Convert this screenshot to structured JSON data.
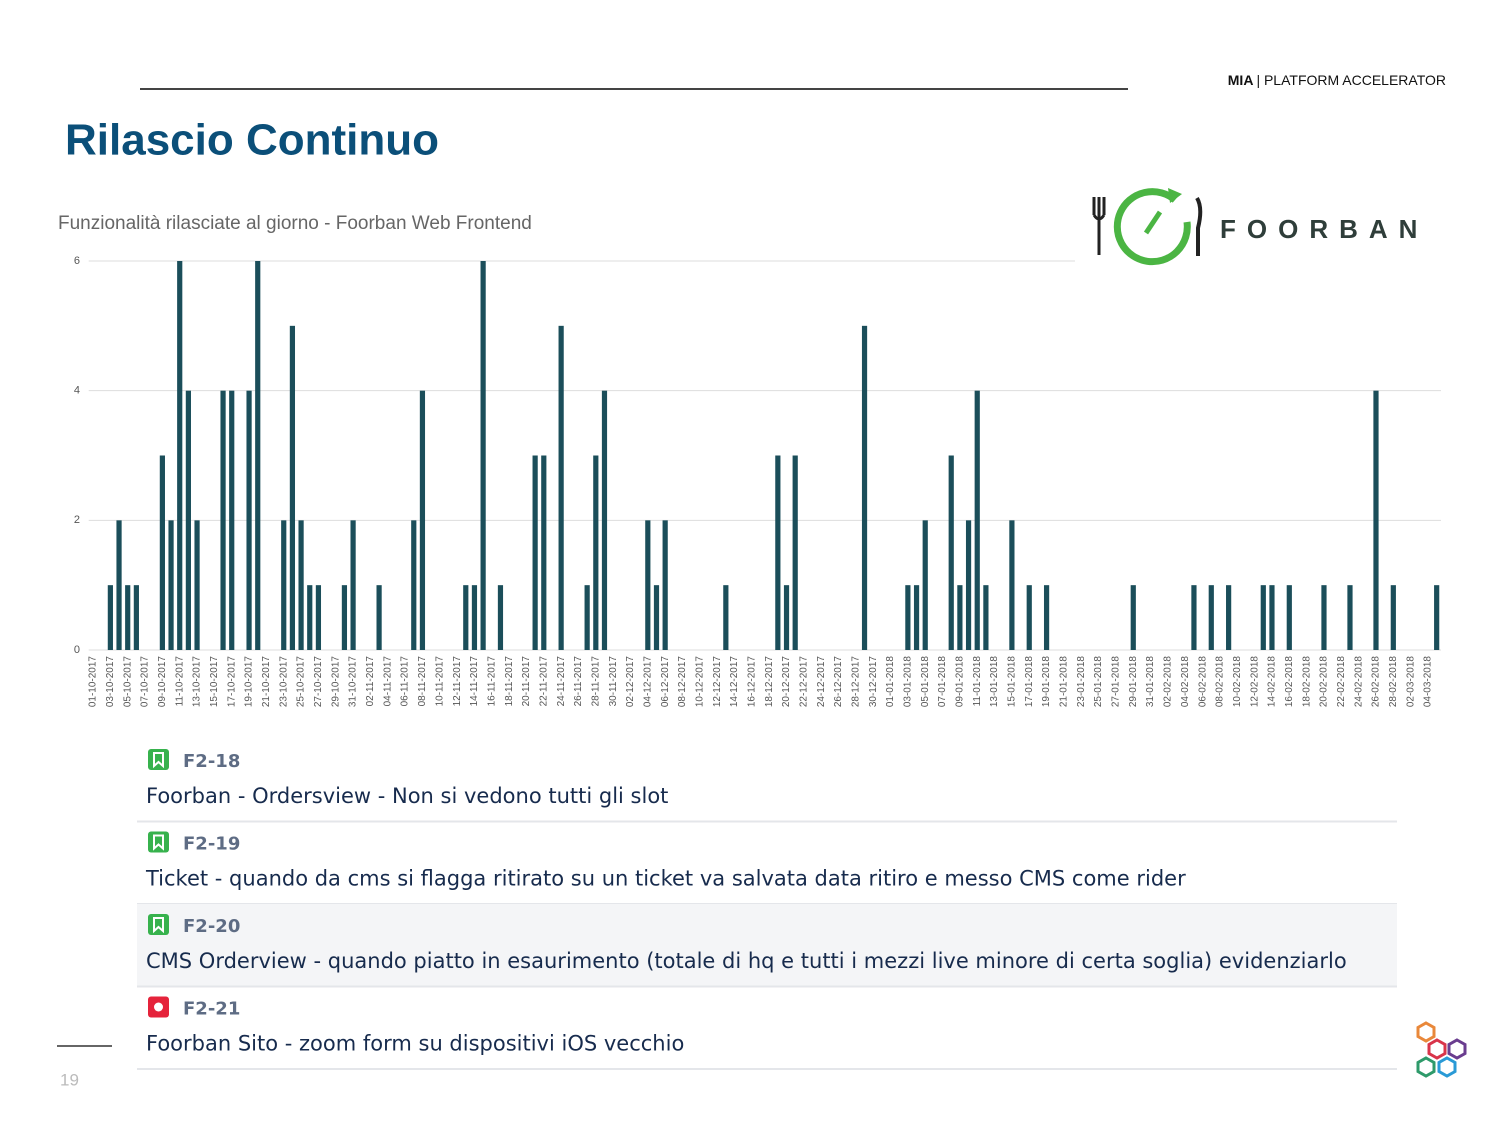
{
  "header": {
    "brand": "MIA",
    "tagline": "| PLATFORM ACCELERATOR"
  },
  "title": "Rilascio Continuo",
  "logo_text": "FOORBAN",
  "page_number": "19",
  "chart_data": {
    "type": "bar",
    "title": "Funzionalità rilasciate al giorno - Foorban Web Frontend",
    "categories": [
      "01-10-2017",
      null,
      "03-10-2017",
      null,
      "05-10-2017",
      null,
      "07-10-2017",
      null,
      "09-10-2017",
      null,
      "11-10-2017",
      null,
      "13-10-2017",
      null,
      "15-10-2017",
      null,
      "17-10-2017",
      null,
      "19-10-2017",
      null,
      "21-10-2017",
      null,
      "23-10-2017",
      null,
      "25-10-2017",
      null,
      "27-10-2017",
      null,
      "29-10-2017",
      null,
      "31-10-2017",
      null,
      "02-11-2017",
      null,
      "04-11-2017",
      null,
      "06-11-2017",
      null,
      "08-11-2017",
      null,
      "10-11-2017",
      null,
      "12-11-2017",
      null,
      "14-11-2017",
      null,
      "16-11-2017",
      null,
      "18-11-2017",
      null,
      "20-11-2017",
      null,
      "22-11-2017",
      null,
      "24-11-2017",
      null,
      "26-11-2017",
      null,
      "28-11-2017",
      null,
      "30-11-2017",
      null,
      "02-12-2017",
      null,
      "04-12-2017",
      null,
      "06-12-2017",
      null,
      "08-12-2017",
      null,
      "10-12-2017",
      null,
      "12-12-2017",
      null,
      "14-12-2017",
      null,
      "16-12-2017",
      null,
      "18-12-2017",
      null,
      "20-12-2017",
      null,
      "22-12-2017",
      null,
      "24-12-2017",
      null,
      "26-12-2017",
      null,
      "28-12-2017",
      null,
      "30-12-2017",
      null,
      "01-01-2018",
      null,
      "03-01-2018",
      null,
      "05-01-2018",
      null,
      "07-01-2018",
      null,
      "09-01-2018",
      null,
      "11-01-2018",
      null,
      "13-01-2018",
      null,
      "15-01-2018",
      null,
      "17-01-2018",
      null,
      "19-01-2018",
      null,
      "21-01-2018",
      null,
      "23-01-2018",
      null,
      "25-01-2018",
      null,
      "27-01-2018",
      null,
      "29-01-2018",
      null,
      "31-01-2018",
      null,
      "02-02-2018",
      null,
      "04-02-2018",
      null,
      "06-02-2018",
      null,
      "08-02-2018",
      null,
      "10-02-2018",
      null,
      "12-02-2018",
      null,
      "14-02-2018",
      null,
      "16-02-2018",
      null,
      "18-02-2018",
      null,
      "20-02-2018",
      null,
      "22-02-2018",
      null,
      "24-02-2018",
      null,
      "26-02-2018",
      null,
      "28-02-2018",
      null,
      "02-03-2018",
      null,
      "04-03-2018",
      null
    ],
    "values": [
      0,
      0,
      1,
      2,
      1,
      1,
      0,
      0,
      3,
      2,
      6,
      4,
      2,
      0,
      0,
      4,
      4,
      0,
      4,
      6,
      0,
      0,
      2,
      5,
      2,
      1,
      1,
      0,
      0,
      1,
      2,
      0,
      0,
      1,
      0,
      0,
      0,
      2,
      4,
      0,
      0,
      0,
      0,
      1,
      1,
      6,
      0,
      1,
      0,
      0,
      0,
      3,
      3,
      0,
      5,
      0,
      0,
      1,
      3,
      4,
      0,
      0,
      0,
      0,
      2,
      1,
      2,
      0,
      0,
      0,
      0,
      0,
      0,
      1,
      0,
      0,
      0,
      0,
      0,
      3,
      1,
      3,
      0,
      0,
      0,
      0,
      0,
      0,
      0,
      5,
      0,
      0,
      0,
      0,
      1,
      1,
      2,
      0,
      0,
      3,
      1,
      2,
      4,
      1,
      0,
      0,
      2,
      0,
      1,
      0,
      1,
      0,
      0,
      0,
      0,
      0,
      0,
      0,
      0,
      0,
      1,
      0,
      0,
      0,
      0,
      0,
      0,
      1,
      0,
      1,
      0,
      1,
      0,
      0,
      0,
      1,
      1,
      0,
      1,
      0,
      0,
      0,
      1,
      0,
      0,
      1,
      0,
      0,
      4,
      0,
      1,
      0,
      0,
      0,
      0,
      1
    ],
    "color": "#1b4e5a",
    "ylim": [
      0,
      6
    ],
    "yticks": [
      0,
      2,
      4,
      6
    ],
    "grid": true
  },
  "issues": [
    {
      "key": "F2-18",
      "summary": "Foorban - Ordersview - Non si vedono tutti gli slot"
    },
    {
      "key": "F2-19",
      "summary": "Ticket - quando da cms si flagga ritirato su un ticket va salvata data ritiro e messo CMS come rider"
    },
    {
      "key": "F2-20",
      "summary": "CMS Orderview - quando piatto in esaurimento (totale di hq e tutti i mezzi live minore di certa soglia) evidenziarlo"
    },
    {
      "key": "F2-21",
      "summary": "Foorban Sito - zoom form su dispositivi iOS vecchio"
    }
  ]
}
